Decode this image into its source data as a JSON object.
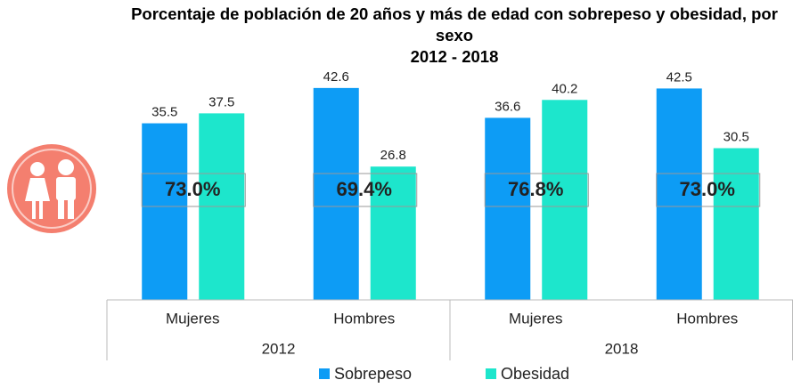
{
  "chart_data": {
    "type": "bar",
    "title": "Porcentaje de población de 20 años y más de edad con sobrepeso y obesidad, por sexo",
    "subtitle": "2012 - 2018",
    "categories": [
      "Mujeres",
      "Hombres",
      "Mujeres",
      "Hombres"
    ],
    "groups": [
      "2012",
      "2018"
    ],
    "series": [
      {
        "name": "Sobrepeso",
        "color": "#0d9cf5",
        "values": [
          35.5,
          42.6,
          36.6,
          42.5
        ]
      },
      {
        "name": "Obesidad",
        "color": "#1de6cc",
        "values": [
          37.5,
          26.8,
          40.2,
          30.5
        ]
      }
    ],
    "totals": [
      73.0,
      69.4,
      76.8,
      73.0
    ],
    "total_labels": [
      "73.0%",
      "69.4%",
      "76.8%",
      "73.0%"
    ],
    "ylim": [
      0,
      50
    ]
  }
}
